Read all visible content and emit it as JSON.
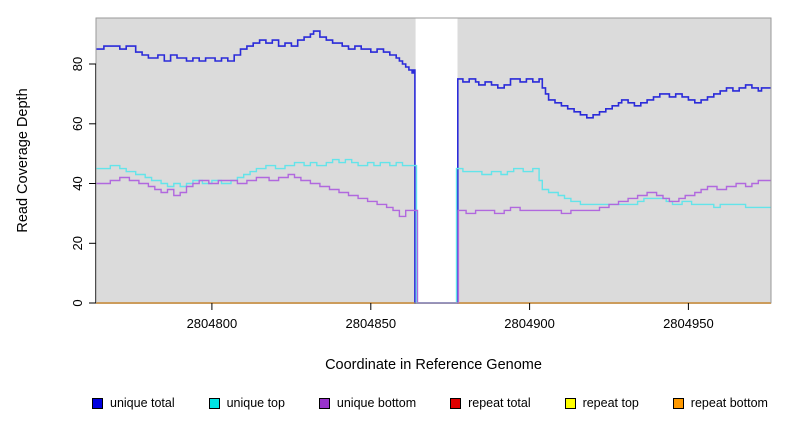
{
  "figure": {
    "x_axis_label": "Coordinate in Reference Genome",
    "y_axis_label": "Read Coverage Depth"
  },
  "chart_data": {
    "type": "line",
    "subtype": "step-coverage",
    "title": "",
    "xlabel": "Coordinate in Reference Genome",
    "ylabel": "Read Coverage Depth",
    "xlim": [
      2804763.5,
      2804976
    ],
    "ylim": [
      0,
      95.4
    ],
    "x_ticks": [
      2804800,
      2804850,
      2804900,
      2804950
    ],
    "y_ticks": [
      0,
      20,
      40,
      60,
      80
    ],
    "grid": false,
    "plot_bg": "#dbdbdb",
    "border_color": "#9a9a9a",
    "legend_position": "bottom",
    "gap_region": {
      "start": 2804864.1,
      "end": 2804877.3,
      "color": "#ffffff"
    },
    "series": [
      {
        "name": "unique total",
        "color": "#2b2bd9",
        "legend_color": "#0000e0",
        "width": 1.6,
        "layer": "above",
        "steps": [
          [
            2804763.5,
            85
          ],
          [
            2804766,
            86
          ],
          [
            2804771,
            85
          ],
          [
            2804773,
            86
          ],
          [
            2804776,
            84
          ],
          [
            2804778,
            83
          ],
          [
            2804780,
            82
          ],
          [
            2804783,
            83
          ],
          [
            2804785,
            81
          ],
          [
            2804787,
            83
          ],
          [
            2804789,
            82
          ],
          [
            2804792,
            81
          ],
          [
            2804794,
            82
          ],
          [
            2804796,
            81
          ],
          [
            2804798,
            82
          ],
          [
            2804801,
            81
          ],
          [
            2804803,
            82
          ],
          [
            2804805,
            81
          ],
          [
            2804807,
            83
          ],
          [
            2804809,
            85
          ],
          [
            2804811,
            86
          ],
          [
            2804813,
            87
          ],
          [
            2804815,
            88
          ],
          [
            2804817,
            87
          ],
          [
            2804819,
            88
          ],
          [
            2804821,
            86
          ],
          [
            2804823,
            87
          ],
          [
            2804825,
            86
          ],
          [
            2804827,
            88
          ],
          [
            2804829,
            89
          ],
          [
            2804831,
            90
          ],
          [
            2804832,
            91
          ],
          [
            2804834,
            89
          ],
          [
            2804836,
            88
          ],
          [
            2804838,
            87
          ],
          [
            2804841,
            86
          ],
          [
            2804843,
            85
          ],
          [
            2804845,
            86
          ],
          [
            2804847,
            85
          ],
          [
            2804850,
            84
          ],
          [
            2804852,
            85
          ],
          [
            2804854,
            84
          ],
          [
            2804856,
            83
          ],
          [
            2804858,
            82
          ],
          [
            2804859,
            81
          ],
          [
            2804860,
            80
          ],
          [
            2804861,
            79
          ],
          [
            2804862,
            78
          ],
          [
            2804863,
            77
          ],
          [
            2804863.5,
            78
          ],
          [
            2804863.9,
            0
          ],
          [
            2804877.4,
            75
          ],
          [
            2804879,
            74
          ],
          [
            2804881,
            75
          ],
          [
            2804883,
            74
          ],
          [
            2804884,
            73
          ],
          [
            2804886,
            74
          ],
          [
            2804888,
            73
          ],
          [
            2804890,
            72
          ],
          [
            2804892,
            73
          ],
          [
            2804894,
            75
          ],
          [
            2804897,
            74
          ],
          [
            2804899,
            75
          ],
          [
            2804901,
            74
          ],
          [
            2804903,
            75
          ],
          [
            2804904,
            72
          ],
          [
            2804905,
            70
          ],
          [
            2804906,
            68
          ],
          [
            2804908,
            67
          ],
          [
            2804910,
            66
          ],
          [
            2804912,
            65
          ],
          [
            2804914,
            64
          ],
          [
            2804916,
            63
          ],
          [
            2804918,
            62
          ],
          [
            2804920,
            63
          ],
          [
            2804922,
            64
          ],
          [
            2804924,
            65
          ],
          [
            2804926,
            66
          ],
          [
            2804928,
            67
          ],
          [
            2804929,
            68
          ],
          [
            2804931,
            67
          ],
          [
            2804933,
            66
          ],
          [
            2804935,
            67
          ],
          [
            2804937,
            68
          ],
          [
            2804939,
            69
          ],
          [
            2804941,
            70
          ],
          [
            2804944,
            69
          ],
          [
            2804946,
            70
          ],
          [
            2804948,
            69
          ],
          [
            2804950,
            68
          ],
          [
            2804952,
            67
          ],
          [
            2804954,
            68
          ],
          [
            2804956,
            69
          ],
          [
            2804958,
            70
          ],
          [
            2804960,
            71
          ],
          [
            2804962,
            72
          ],
          [
            2804964,
            71
          ],
          [
            2804966,
            72
          ],
          [
            2804968,
            73
          ],
          [
            2804970,
            72
          ],
          [
            2804972,
            71
          ],
          [
            2804973,
            72
          ]
        ]
      },
      {
        "name": "unique top",
        "color": "#63e4ea",
        "legend_color": "#00e5e5",
        "width": 1.4,
        "layer": "above",
        "steps": [
          [
            2804763.5,
            45
          ],
          [
            2804768,
            46
          ],
          [
            2804771,
            45
          ],
          [
            2804773,
            44
          ],
          [
            2804776,
            43
          ],
          [
            2804779,
            42
          ],
          [
            2804781,
            41
          ],
          [
            2804784,
            40
          ],
          [
            2804786,
            39
          ],
          [
            2804788,
            40
          ],
          [
            2804790,
            39
          ],
          [
            2804792,
            40
          ],
          [
            2804794,
            41
          ],
          [
            2804797,
            40
          ],
          [
            2804800,
            41
          ],
          [
            2804803,
            40
          ],
          [
            2804806,
            41
          ],
          [
            2804808,
            42
          ],
          [
            2804810,
            43
          ],
          [
            2804812,
            44
          ],
          [
            2804814,
            45
          ],
          [
            2804817,
            46
          ],
          [
            2804820,
            45
          ],
          [
            2804823,
            46
          ],
          [
            2804826,
            47
          ],
          [
            2804829,
            46
          ],
          [
            2804831,
            47
          ],
          [
            2804833,
            46
          ],
          [
            2804836,
            47
          ],
          [
            2804838,
            48
          ],
          [
            2804840,
            47
          ],
          [
            2804842,
            48
          ],
          [
            2804844,
            47
          ],
          [
            2804846,
            46
          ],
          [
            2804849,
            47
          ],
          [
            2804851,
            46
          ],
          [
            2804853,
            47
          ],
          [
            2804856,
            46
          ],
          [
            2804858,
            47
          ],
          [
            2804860,
            46
          ],
          [
            2804864.4,
            0
          ],
          [
            2804877,
            45
          ],
          [
            2804879,
            44
          ],
          [
            2804885,
            43
          ],
          [
            2804888,
            44
          ],
          [
            2804891,
            43
          ],
          [
            2804893,
            44
          ],
          [
            2804895,
            45
          ],
          [
            2804898,
            44
          ],
          [
            2804901,
            45
          ],
          [
            2804903,
            41
          ],
          [
            2804904,
            38
          ],
          [
            2804906,
            37
          ],
          [
            2804909,
            36
          ],
          [
            2804911,
            35
          ],
          [
            2804913,
            34
          ],
          [
            2804916,
            33
          ],
          [
            2804934,
            34
          ],
          [
            2804936,
            35
          ],
          [
            2804943,
            34
          ],
          [
            2804945,
            33
          ],
          [
            2804948,
            34
          ],
          [
            2804951,
            33
          ],
          [
            2804958,
            32
          ],
          [
            2804960,
            33
          ],
          [
            2804968,
            32
          ]
        ]
      },
      {
        "name": "unique bottom",
        "color": "#b168de",
        "legend_color": "#9932cc",
        "width": 1.4,
        "layer": "above",
        "steps": [
          [
            2804763.5,
            40
          ],
          [
            2804768,
            41
          ],
          [
            2804771,
            42
          ],
          [
            2804774,
            41
          ],
          [
            2804777,
            40
          ],
          [
            2804780,
            39
          ],
          [
            2804782,
            38
          ],
          [
            2804784,
            37
          ],
          [
            2804786,
            38
          ],
          [
            2804788,
            36
          ],
          [
            2804790,
            37
          ],
          [
            2804792,
            39
          ],
          [
            2804794,
            40
          ],
          [
            2804796,
            41
          ],
          [
            2804799,
            40
          ],
          [
            2804802,
            41
          ],
          [
            2804808,
            40
          ],
          [
            2804811,
            41
          ],
          [
            2804814,
            42
          ],
          [
            2804818,
            41
          ],
          [
            2804821,
            42
          ],
          [
            2804824,
            43
          ],
          [
            2804826,
            42
          ],
          [
            2804828,
            41
          ],
          [
            2804831,
            40
          ],
          [
            2804834,
            39
          ],
          [
            2804837,
            38
          ],
          [
            2804840,
            37
          ],
          [
            2804843,
            36
          ],
          [
            2804846,
            35
          ],
          [
            2804849,
            34
          ],
          [
            2804852,
            33
          ],
          [
            2804855,
            32
          ],
          [
            2804857,
            31
          ],
          [
            2804859,
            29
          ],
          [
            2804861,
            31
          ],
          [
            2804864.7,
            0
          ],
          [
            2804877.6,
            31
          ],
          [
            2804880,
            30
          ],
          [
            2804883,
            31
          ],
          [
            2804889,
            30
          ],
          [
            2804892,
            31
          ],
          [
            2804894,
            32
          ],
          [
            2804897,
            31
          ],
          [
            2804910,
            30
          ],
          [
            2804913,
            31
          ],
          [
            2804922,
            32
          ],
          [
            2804925,
            33
          ],
          [
            2804928,
            34
          ],
          [
            2804931,
            35
          ],
          [
            2804934,
            36
          ],
          [
            2804937,
            37
          ],
          [
            2804940,
            36
          ],
          [
            2804942,
            35
          ],
          [
            2804944,
            34
          ],
          [
            2804947,
            35
          ],
          [
            2804949,
            36
          ],
          [
            2804952,
            37
          ],
          [
            2804954,
            38
          ],
          [
            2804956,
            39
          ],
          [
            2804959,
            38
          ],
          [
            2804962,
            39
          ],
          [
            2804965,
            40
          ],
          [
            2804968,
            39
          ],
          [
            2804970,
            40
          ],
          [
            2804972,
            41
          ]
        ]
      },
      {
        "name": "repeat total",
        "color": "#e00000",
        "legend_color": "#e00000",
        "width": 1.6,
        "layer": "below",
        "steps": [
          [
            2804763.5,
            0
          ]
        ]
      },
      {
        "name": "repeat top",
        "color": "#ffff00",
        "legend_color": "#ffff00",
        "width": 1.6,
        "layer": "below",
        "steps": [
          [
            2804763.5,
            0
          ]
        ]
      },
      {
        "name": "repeat bottom",
        "color": "#ff9d1e",
        "legend_color": "#ff9900",
        "width": 2,
        "layer": "below",
        "steps": [
          [
            2804763.5,
            0
          ]
        ]
      }
    ]
  }
}
